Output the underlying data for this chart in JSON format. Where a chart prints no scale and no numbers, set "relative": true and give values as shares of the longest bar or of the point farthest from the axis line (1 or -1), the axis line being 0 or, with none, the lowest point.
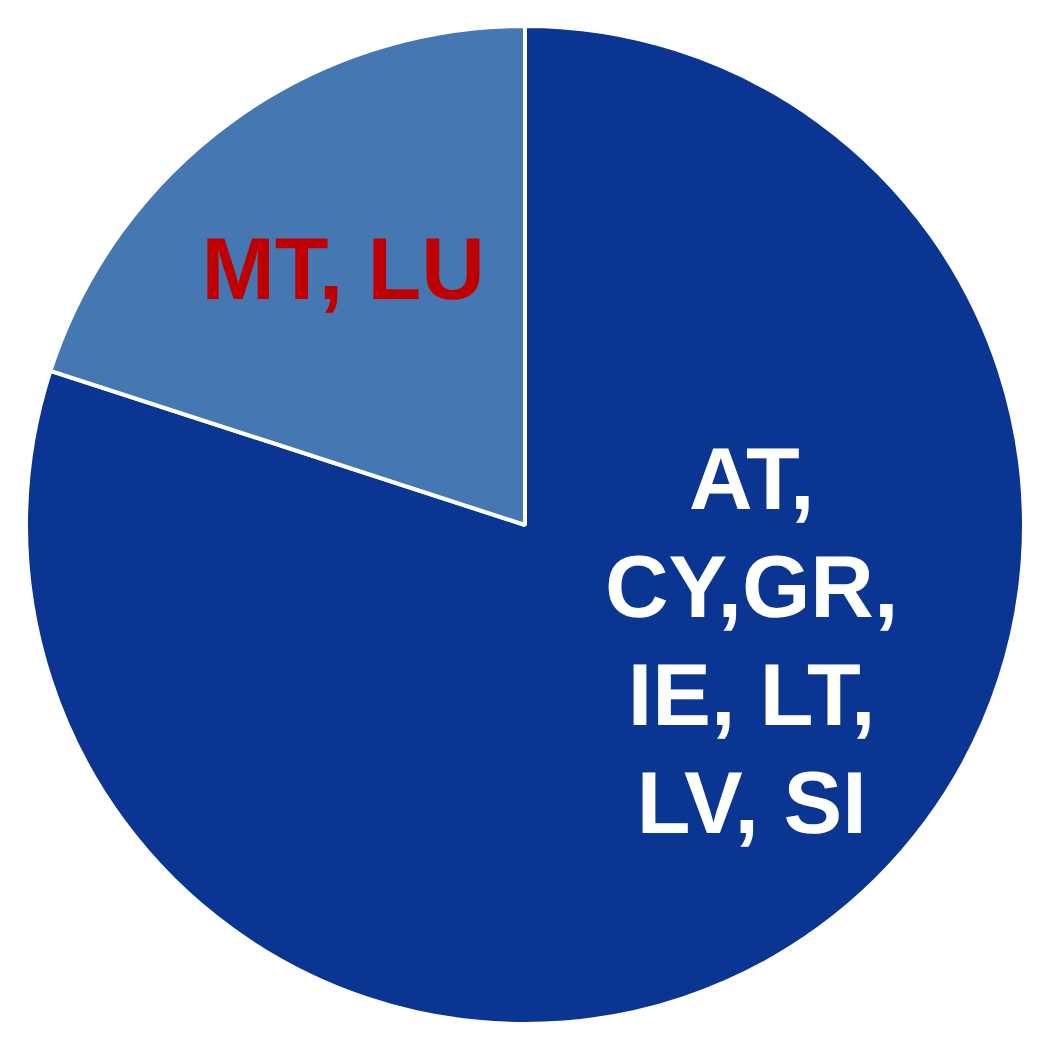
{
  "chart_data": {
    "type": "pie",
    "relative": true,
    "categories": [
      "AT, CY,GR, IE, LT, LV, SI",
      "MT, LU"
    ],
    "values": [
      80,
      20
    ],
    "colors": [
      "#0b3592",
      "#4577b3"
    ],
    "legend": false
  }
}
